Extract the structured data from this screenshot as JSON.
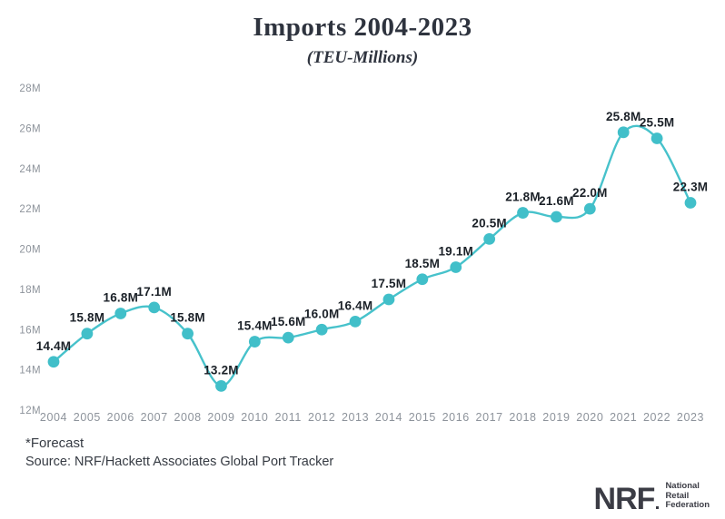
{
  "title": "Imports 2004-2023",
  "subtitle": "(TEU-Millions)",
  "footer": {
    "forecast_note": "*Forecast",
    "source": "Source: NRF/Hackett Associates Global Port Tracker"
  },
  "logo": {
    "abbr": "NRF",
    "full_lines": [
      "National",
      "Retail",
      "Federation"
    ]
  },
  "colors": {
    "line": "#47c2cb",
    "dot": "#41bfc9",
    "data_label": "#1b2128",
    "tick_label": "#8d939b",
    "title_text": "#2e333e",
    "footer_text": "#363b43",
    "logo_text": "#3b3c45"
  },
  "chart_data": {
    "type": "line",
    "title": "Imports 2004-2023",
    "subtitle": "(TEU-Millions)",
    "categories": [
      "2004",
      "2005",
      "2006",
      "2007",
      "2008",
      "2009",
      "2010",
      "2011",
      "2012",
      "2013",
      "2014",
      "2015",
      "2016",
      "2017",
      "2018",
      "2019",
      "2020",
      "2021",
      "2022",
      "2023"
    ],
    "values": [
      14.4,
      15.8,
      16.8,
      17.1,
      15.8,
      13.2,
      15.4,
      15.6,
      16.0,
      16.4,
      17.5,
      18.5,
      19.1,
      20.5,
      21.8,
      21.6,
      22.0,
      25.8,
      25.5,
      22.3
    ],
    "point_labels": [
      "14.4M",
      "15.8M",
      "16.8M",
      "17.1M",
      "15.8M",
      "13.2M",
      "15.4M",
      "15.6M",
      "16.0M",
      "16.4M",
      "17.5M",
      "18.5M",
      "19.1M",
      "20.5M",
      "21.8M",
      "21.6M",
      "22.0M",
      "25.8M",
      "25.5M",
      "22.3M"
    ],
    "unit": "M",
    "xlabel": "",
    "ylabel": "",
    "ylim": [
      12,
      28
    ],
    "ytick_step": 2,
    "ytick_labels": [
      "12M",
      "14M",
      "16M",
      "18M",
      "20M",
      "22M",
      "24M",
      "26M",
      "28M"
    ],
    "grid": false,
    "legend": false,
    "data_labels": true,
    "smooth": true
  }
}
